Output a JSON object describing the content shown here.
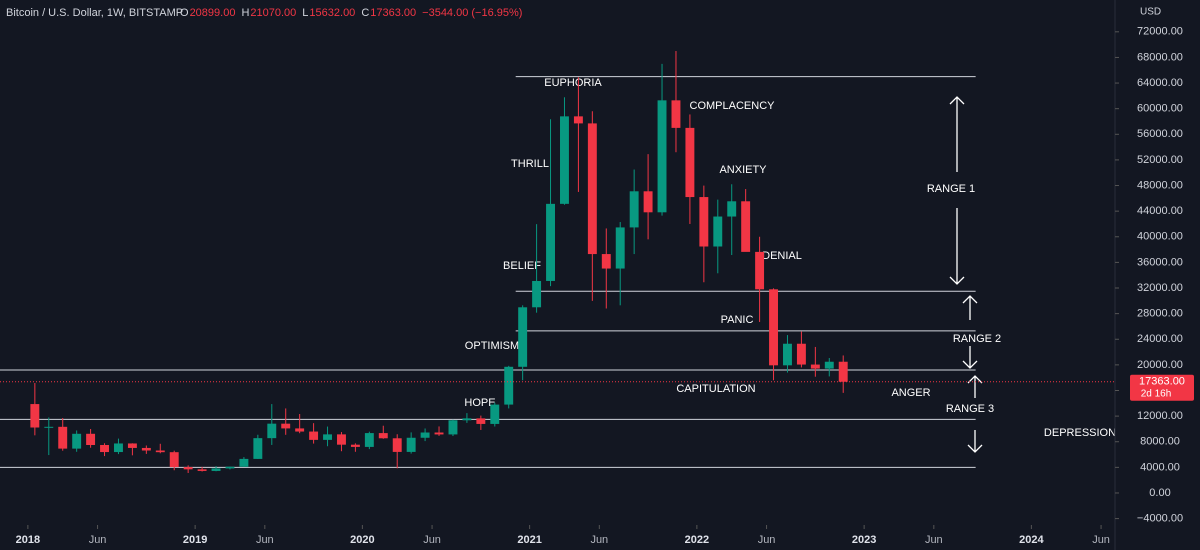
{
  "header": {
    "symbol": "Bitcoin / U.S. Dollar, 1W, BITSTAMP",
    "ohlc": [
      {
        "key": "O",
        "value": "20899.00"
      },
      {
        "key": "H",
        "value": "21070.00"
      },
      {
        "key": "L",
        "value": "15632.00"
      },
      {
        "key": "C",
        "value": "17363.00"
      }
    ],
    "change": "−3544.00 (−16.95%)"
  },
  "chart_data": {
    "type": "candlestick",
    "currency": "USD",
    "x": [
      "2018-01",
      "2018-02",
      "2018-03",
      "2018-04",
      "2018-05",
      "2018-06",
      "2018-07",
      "2018-08",
      "2018-09",
      "2018-10",
      "2018-11",
      "2018-12",
      "2019-01",
      "2019-02",
      "2019-03",
      "2019-04",
      "2019-05",
      "2019-06",
      "2019-07",
      "2019-08",
      "2019-09",
      "2019-10",
      "2019-11",
      "2019-12",
      "2020-01",
      "2020-02",
      "2020-03",
      "2020-04",
      "2020-05",
      "2020-06",
      "2020-07",
      "2020-08",
      "2020-09",
      "2020-10",
      "2020-11",
      "2020-12",
      "2021-01",
      "2021-02",
      "2021-03",
      "2021-04",
      "2021-05",
      "2021-06",
      "2021-07",
      "2021-08",
      "2021-09",
      "2021-10",
      "2021-11",
      "2021-12",
      "2022-01",
      "2022-02",
      "2022-03",
      "2022-04",
      "2022-05",
      "2022-06",
      "2022-07",
      "2022-08",
      "2022-09",
      "2022-10",
      "2022-11"
    ],
    "open": [
      13880,
      10221,
      10330,
      6925,
      9240,
      7490,
      6390,
      7730,
      7030,
      6630,
      6370,
      4040,
      3690,
      3440,
      3830,
      4100,
      5320,
      8560,
      10820,
      10080,
      9590,
      8290,
      9150,
      7540,
      7190,
      9350,
      8540,
      6410,
      8620,
      9440,
      9140,
      11350,
      11650,
      10780,
      13800,
      19700,
      28990,
      33100,
      45140,
      58800,
      57700,
      37300,
      35040,
      41460,
      47100,
      43820,
      61300,
      57000,
      46200,
      38480,
      43160,
      45540,
      37640,
      31800,
      19930,
      23300,
      20050,
      19420,
      20490
    ],
    "high": [
      17170,
      11790,
      11700,
      9760,
      9990,
      7760,
      8490,
      7760,
      7410,
      7680,
      6600,
      4310,
      4070,
      4200,
      4130,
      5600,
      9090,
      13880,
      13200,
      12330,
      10900,
      10370,
      9510,
      7750,
      9570,
      10500,
      9170,
      9460,
      10070,
      10390,
      11440,
      12470,
      12080,
      14100,
      19850,
      29300,
      41970,
      58350,
      61780,
      64900,
      59600,
      41300,
      42300,
      50500,
      52900,
      67000,
      69000,
      59100,
      47990,
      45800,
      48200,
      47450,
      40000,
      31950,
      24650,
      25200,
      22800,
      21070,
      21470
    ],
    "low": [
      9000,
      5920,
      6600,
      6430,
      7060,
      5760,
      6070,
      5880,
      6100,
      6200,
      3550,
      3120,
      3350,
      3390,
      3680,
      4080,
      5310,
      7500,
      9080,
      9330,
      7710,
      7300,
      6520,
      6430,
      6850,
      8460,
      3850,
      6150,
      8100,
      8910,
      8890,
      10940,
      9840,
      10380,
      13200,
      17600,
      28150,
      32300,
      45000,
      47000,
      30000,
      28800,
      29300,
      37300,
      39600,
      43300,
      53200,
      42000,
      32900,
      34300,
      37150,
      37700,
      26700,
      17600,
      18800,
      19600,
      18150,
      18200,
      15630
    ],
    "close": [
      10221,
      10330,
      6925,
      9240,
      7490,
      6390,
      7730,
      7030,
      6630,
      6370,
      4040,
      3690,
      3440,
      3830,
      4100,
      5320,
      8560,
      10820,
      10080,
      9590,
      8290,
      9150,
      7540,
      7190,
      9350,
      8540,
      6410,
      8620,
      9440,
      9140,
      11350,
      11650,
      10780,
      13800,
      19700,
      28990,
      33100,
      45140,
      58800,
      57700,
      37300,
      35040,
      41460,
      47100,
      43820,
      61300,
      57000,
      46200,
      38480,
      43160,
      45540,
      37640,
      31800,
      19930,
      23300,
      20050,
      19420,
      20490,
      17363
    ],
    "up_color": "#089981",
    "down_color": "#f23645",
    "xlim": [
      "2017-11",
      "2024-07"
    ],
    "xticks": [
      {
        "value": "2018-01",
        "label": "2018"
      },
      {
        "value": "2018-06",
        "label": "Jun"
      },
      {
        "value": "2019-01",
        "label": "2019"
      },
      {
        "value": "2019-06",
        "label": "Jun"
      },
      {
        "value": "2020-01",
        "label": "2020"
      },
      {
        "value": "2020-06",
        "label": "Jun"
      },
      {
        "value": "2021-01",
        "label": "2021"
      },
      {
        "value": "2021-06",
        "label": "Jun"
      },
      {
        "value": "2022-01",
        "label": "2022"
      },
      {
        "value": "2022-06",
        "label": "Jun"
      },
      {
        "value": "2023-01",
        "label": "2023"
      },
      {
        "value": "2023-06",
        "label": "Jun"
      },
      {
        "value": "2024-01",
        "label": "2024"
      },
      {
        "value": "2024-06",
        "label": "Jun"
      }
    ],
    "ylim": [
      -5000,
      74000
    ],
    "yticks": [
      {
        "value": -4000,
        "label": "−4000.00"
      },
      {
        "value": 0,
        "label": "0.00"
      },
      {
        "value": 4000,
        "label": "4000.00"
      },
      {
        "value": 8000,
        "label": "8000.00"
      },
      {
        "value": 12000,
        "label": "12000.00"
      },
      {
        "value": 16000,
        "label": "16000.00"
      },
      {
        "value": 20000,
        "label": "20000.00"
      },
      {
        "value": 24000,
        "label": "24000.00"
      },
      {
        "value": 28000,
        "label": "28000.00"
      },
      {
        "value": 32000,
        "label": "32000.00"
      },
      {
        "value": 36000,
        "label": "36000.00"
      },
      {
        "value": 40000,
        "label": "40000.00"
      },
      {
        "value": 44000,
        "label": "44000.00"
      },
      {
        "value": 48000,
        "label": "48000.00"
      },
      {
        "value": 52000,
        "label": "52000.00"
      },
      {
        "value": 56000,
        "label": "56000.00"
      },
      {
        "value": 60000,
        "label": "60000.00"
      },
      {
        "value": 64000,
        "label": "64000.00"
      },
      {
        "value": 68000,
        "label": "68000.00"
      },
      {
        "value": 72000,
        "label": "72000.00"
      }
    ],
    "levels": [
      {
        "value": 65000,
        "start": "2020-12",
        "end": "2023-09"
      },
      {
        "value": 31500,
        "start": "2020-12",
        "end": "2023-09"
      },
      {
        "value": 25300,
        "start": "2020-12",
        "end": "2023-09"
      },
      {
        "value": 19200,
        "start": "2017-11",
        "end": "2023-09"
      },
      {
        "value": 11500,
        "start": "2017-11",
        "end": "2023-09"
      },
      {
        "value": 4000,
        "start": "2017-11",
        "end": "2023-09"
      }
    ],
    "last_price": {
      "value": 17363,
      "label": "17363.00",
      "countdown": "2d 16h"
    },
    "annotations": [
      "EUPHORIA",
      "COMPLACENCY",
      "THRILL",
      "ANXIETY",
      "RANGE 1",
      "BELIEF",
      "DENIAL",
      "PANIC",
      "RANGE 2",
      "OPTIMISM",
      "CAPITULATION",
      "ANGER",
      "HOPE",
      "RANGE 3",
      "DEPRESSION"
    ]
  }
}
